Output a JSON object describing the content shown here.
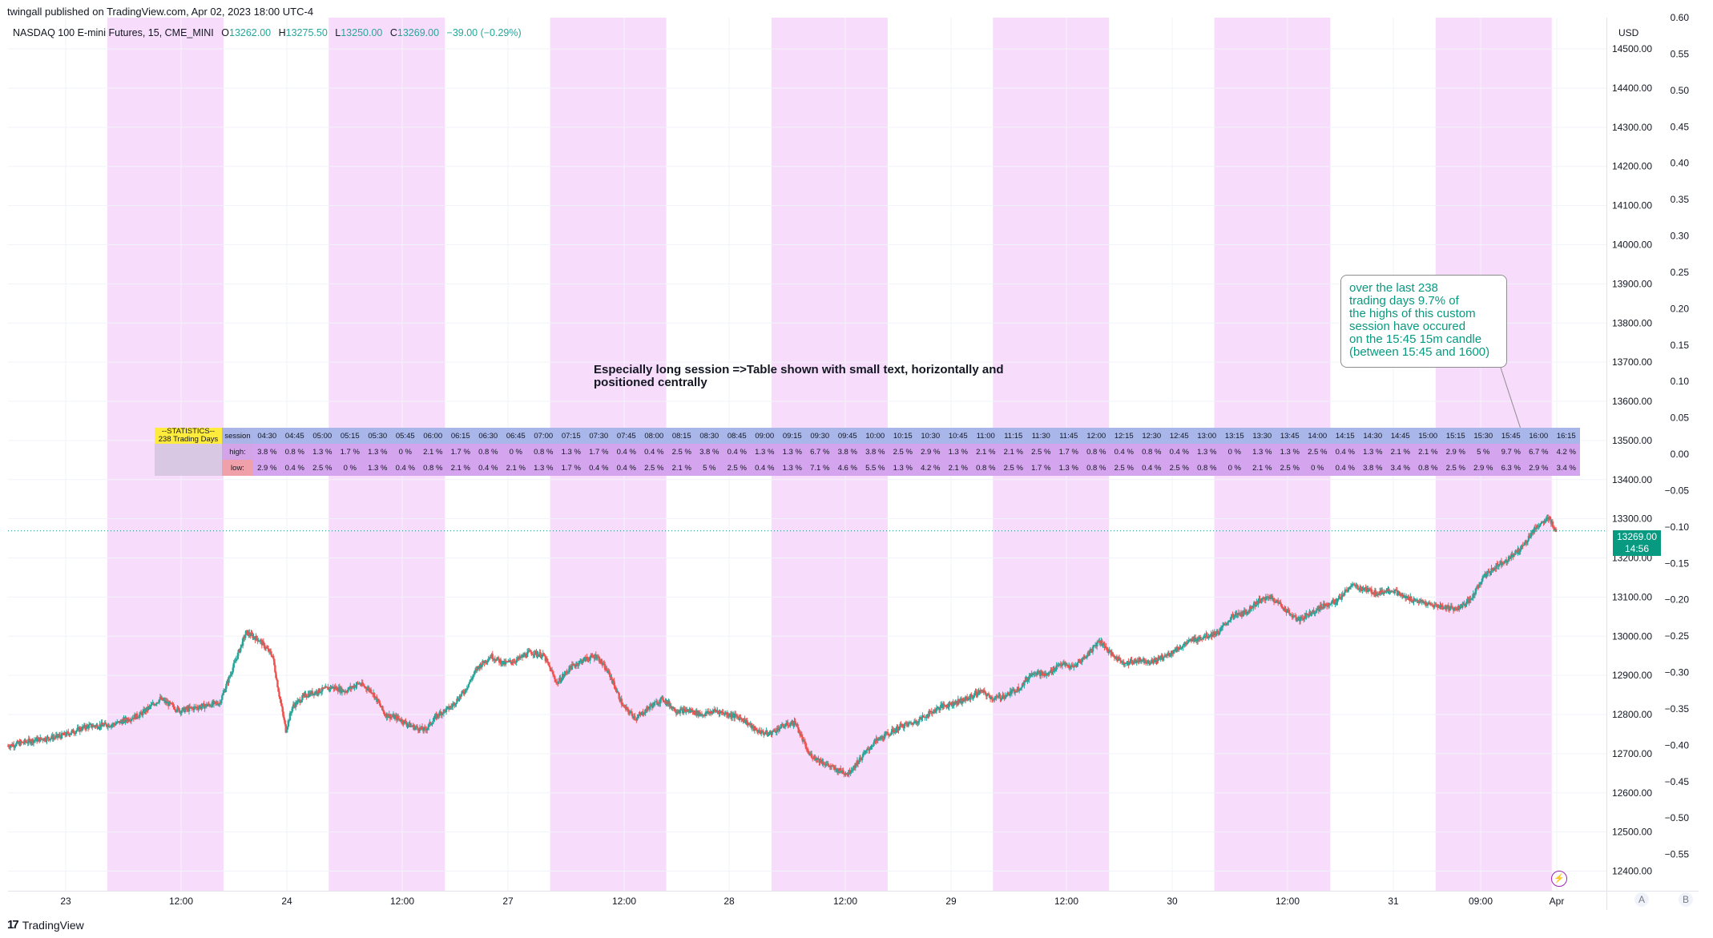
{
  "header": {
    "published": "twingall published on TradingView.com, Apr 02, 2023 18:00 UTC-4",
    "symbol": "NASDAQ 100 E-mini Futures, 15, CME_MINI",
    "open_label": "O",
    "open": "13262.00",
    "high_label": "H",
    "high": "13275.50",
    "low_label": "L",
    "low": "13250.00",
    "close_label": "C",
    "close": "13269.00",
    "change": "−39.00 (−0.29%)"
  },
  "price_tag": {
    "price": "13269.00",
    "countdown": "14:56"
  },
  "axis": {
    "currency": "USD"
  },
  "annotation_main": "Especially long session =>Table shown with small text, horizontally and positioned centrally",
  "callout": {
    "lines": [
      "over the last 238",
      "trading days 9.7% of",
      "the highs of this custom",
      "session have occured",
      "on the 15:45 15m candle",
      "(between 15:45 and 1600)"
    ]
  },
  "stats_table": {
    "title_line1": "--STATISTICS--",
    "title_line2": "238 Trading Days",
    "session_label": "session",
    "high_label": "high:",
    "low_label": "low:",
    "times": [
      "04:30",
      "04:45",
      "05:00",
      "05:15",
      "05:30",
      "05:45",
      "06:00",
      "06:15",
      "06:30",
      "06:45",
      "07:00",
      "07:15",
      "07:30",
      "07:45",
      "08:00",
      "08:15",
      "08:30",
      "08:45",
      "09:00",
      "09:15",
      "09:30",
      "09:45",
      "10:00",
      "10:15",
      "10:30",
      "10:45",
      "11:00",
      "11:15",
      "11:30",
      "11:45",
      "12:00",
      "12:15",
      "12:30",
      "12:45",
      "13:00",
      "13:15",
      "13:30",
      "13:45",
      "14:00",
      "14:15",
      "14:30",
      "14:45",
      "15:00",
      "15:15",
      "15:30",
      "15:45",
      "16:00",
      "16:15"
    ],
    "highs": [
      "3.8 %",
      "0.8 %",
      "1.3 %",
      "1.7 %",
      "1.3 %",
      "0 %",
      "2.1 %",
      "1.7 %",
      "0.8 %",
      "0 %",
      "0.8 %",
      "1.3 %",
      "1.7 %",
      "0.4 %",
      "0.4 %",
      "2.5 %",
      "3.8 %",
      "0.4 %",
      "1.3 %",
      "1.3 %",
      "6.7 %",
      "3.8 %",
      "3.8 %",
      "2.5 %",
      "2.9 %",
      "1.3 %",
      "2.1 %",
      "2.1 %",
      "2.5 %",
      "1.7 %",
      "0.8 %",
      "0.4 %",
      "0.8 %",
      "0.4 %",
      "1.3 %",
      "0 %",
      "1.3 %",
      "1.3 %",
      "2.5 %",
      "0.4 %",
      "1.3 %",
      "2.1 %",
      "2.1 %",
      "2.9 %",
      "5 %",
      "9.7 %",
      "6.7 %",
      "4.2 %"
    ],
    "lows": [
      "2.9 %",
      "0.4 %",
      "2.5 %",
      "0 %",
      "1.3 %",
      "0.4 %",
      "0.8 %",
      "2.1 %",
      "0.4 %",
      "2.1 %",
      "1.3 %",
      "1.7 %",
      "0.4 %",
      "0.4 %",
      "2.5 %",
      "2.1 %",
      "5 %",
      "2.5 %",
      "0.4 %",
      "1.3 %",
      "7.1 %",
      "4.6 %",
      "5.5 %",
      "1.3 %",
      "4.2 %",
      "2.1 %",
      "0.8 %",
      "2.5 %",
      "1.7 %",
      "1.3 %",
      "0.8 %",
      "2.5 %",
      "0.4 %",
      "2.5 %",
      "0.8 %",
      "0 %",
      "2.1 %",
      "2.5 %",
      "0 %",
      "0.4 %",
      "3.8 %",
      "3.4 %",
      "0.8 %",
      "2.5 %",
      "2.9 %",
      "6.3 %",
      "2.9 %",
      "3.4 %"
    ]
  },
  "footer": {
    "logo": "TradingView",
    "badge_a": "A",
    "badge_b": "B"
  },
  "colors": {
    "up": "#26a69a",
    "down": "#ef5350",
    "session_bg": "#f8dcfb",
    "grid": "#f0f3fa",
    "accent": "#089981"
  },
  "chart_data": {
    "type": "candlestick",
    "price_axis": {
      "ylim": [
        12350,
        14580
      ],
      "ticks": [
        12400,
        12500,
        12600,
        12700,
        12800,
        12900,
        13000,
        13100,
        13200,
        13300,
        13400,
        13500,
        13600,
        13700,
        13800,
        13900,
        14000,
        14100,
        14200,
        14300,
        14400,
        14500
      ]
    },
    "indicator_axis": {
      "ylim": [
        -0.6,
        0.6
      ],
      "ticks": [
        0.6,
        0.55,
        0.5,
        0.45,
        0.4,
        0.35,
        0.3,
        0.25,
        0.2,
        0.15,
        0.1,
        0.05,
        0.0,
        -0.05,
        -0.1,
        -0.15,
        -0.2,
        -0.25,
        -0.3,
        -0.35,
        -0.4,
        -0.45,
        -0.5,
        -0.55
      ]
    },
    "x_ticks": [
      "23",
      "12:00",
      "24",
      "12:00",
      "27",
      "12:00",
      "28",
      "12:00",
      "29",
      "12:00",
      "30",
      "12:00",
      "31",
      "09:00",
      "Apr"
    ],
    "session_windows": 7,
    "last_price": 13269,
    "close_path": [
      [
        0,
        12720
      ],
      [
        8,
        12735
      ],
      [
        16,
        12745
      ],
      [
        24,
        12770
      ],
      [
        32,
        12775
      ],
      [
        40,
        12800
      ],
      [
        46,
        12840
      ],
      [
        52,
        12810
      ],
      [
        58,
        12820
      ],
      [
        64,
        12830
      ],
      [
        68,
        12920
      ],
      [
        72,
        13010
      ],
      [
        76,
        12990
      ],
      [
        80,
        12950
      ],
      [
        82,
        12850
      ],
      [
        84,
        12760
      ],
      [
        86,
        12820
      ],
      [
        90,
        12850
      ],
      [
        94,
        12860
      ],
      [
        98,
        12870
      ],
      [
        102,
        12860
      ],
      [
        106,
        12880
      ],
      [
        110,
        12860
      ],
      [
        114,
        12800
      ],
      [
        118,
        12790
      ],
      [
        122,
        12770
      ],
      [
        126,
        12760
      ],
      [
        130,
        12800
      ],
      [
        134,
        12820
      ],
      [
        138,
        12860
      ],
      [
        142,
        12920
      ],
      [
        146,
        12950
      ],
      [
        150,
        12930
      ],
      [
        154,
        12940
      ],
      [
        158,
        12960
      ],
      [
        162,
        12950
      ],
      [
        166,
        12880
      ],
      [
        170,
        12920
      ],
      [
        174,
        12940
      ],
      [
        178,
        12950
      ],
      [
        182,
        12900
      ],
      [
        186,
        12820
      ],
      [
        190,
        12790
      ],
      [
        194,
        12820
      ],
      [
        198,
        12840
      ],
      [
        202,
        12810
      ],
      [
        206,
        12810
      ],
      [
        210,
        12800
      ],
      [
        214,
        12810
      ],
      [
        218,
        12800
      ],
      [
        222,
        12790
      ],
      [
        226,
        12760
      ],
      [
        230,
        12750
      ],
      [
        234,
        12770
      ],
      [
        238,
        12780
      ],
      [
        242,
        12700
      ],
      [
        246,
        12680
      ],
      [
        250,
        12660
      ],
      [
        254,
        12650
      ],
      [
        258,
        12690
      ],
      [
        262,
        12730
      ],
      [
        266,
        12750
      ],
      [
        270,
        12770
      ],
      [
        274,
        12780
      ],
      [
        278,
        12800
      ],
      [
        282,
        12820
      ],
      [
        286,
        12830
      ],
      [
        290,
        12840
      ],
      [
        294,
        12860
      ],
      [
        298,
        12840
      ],
      [
        302,
        12850
      ],
      [
        306,
        12870
      ],
      [
        310,
        12910
      ],
      [
        314,
        12900
      ],
      [
        318,
        12930
      ],
      [
        322,
        12920
      ],
      [
        326,
        12950
      ],
      [
        330,
        12990
      ],
      [
        334,
        12950
      ],
      [
        338,
        12930
      ],
      [
        342,
        12940
      ],
      [
        346,
        12935
      ],
      [
        350,
        12950
      ],
      [
        354,
        12970
      ],
      [
        358,
        12990
      ],
      [
        362,
        13000
      ],
      [
        366,
        13010
      ],
      [
        370,
        13050
      ],
      [
        374,
        13060
      ],
      [
        378,
        13090
      ],
      [
        382,
        13100
      ],
      [
        386,
        13070
      ],
      [
        390,
        13040
      ],
      [
        394,
        13060
      ],
      [
        398,
        13080
      ],
      [
        402,
        13090
      ],
      [
        406,
        13130
      ],
      [
        410,
        13120
      ],
      [
        414,
        13110
      ],
      [
        418,
        13120
      ],
      [
        422,
        13100
      ],
      [
        426,
        13090
      ],
      [
        430,
        13080
      ],
      [
        434,
        13075
      ],
      [
        438,
        13070
      ],
      [
        442,
        13090
      ],
      [
        446,
        13150
      ],
      [
        450,
        13180
      ],
      [
        454,
        13200
      ],
      [
        458,
        13230
      ],
      [
        462,
        13280
      ],
      [
        466,
        13300
      ],
      [
        468,
        13269
      ]
    ],
    "table_title": "--STATISTICS--"
  }
}
